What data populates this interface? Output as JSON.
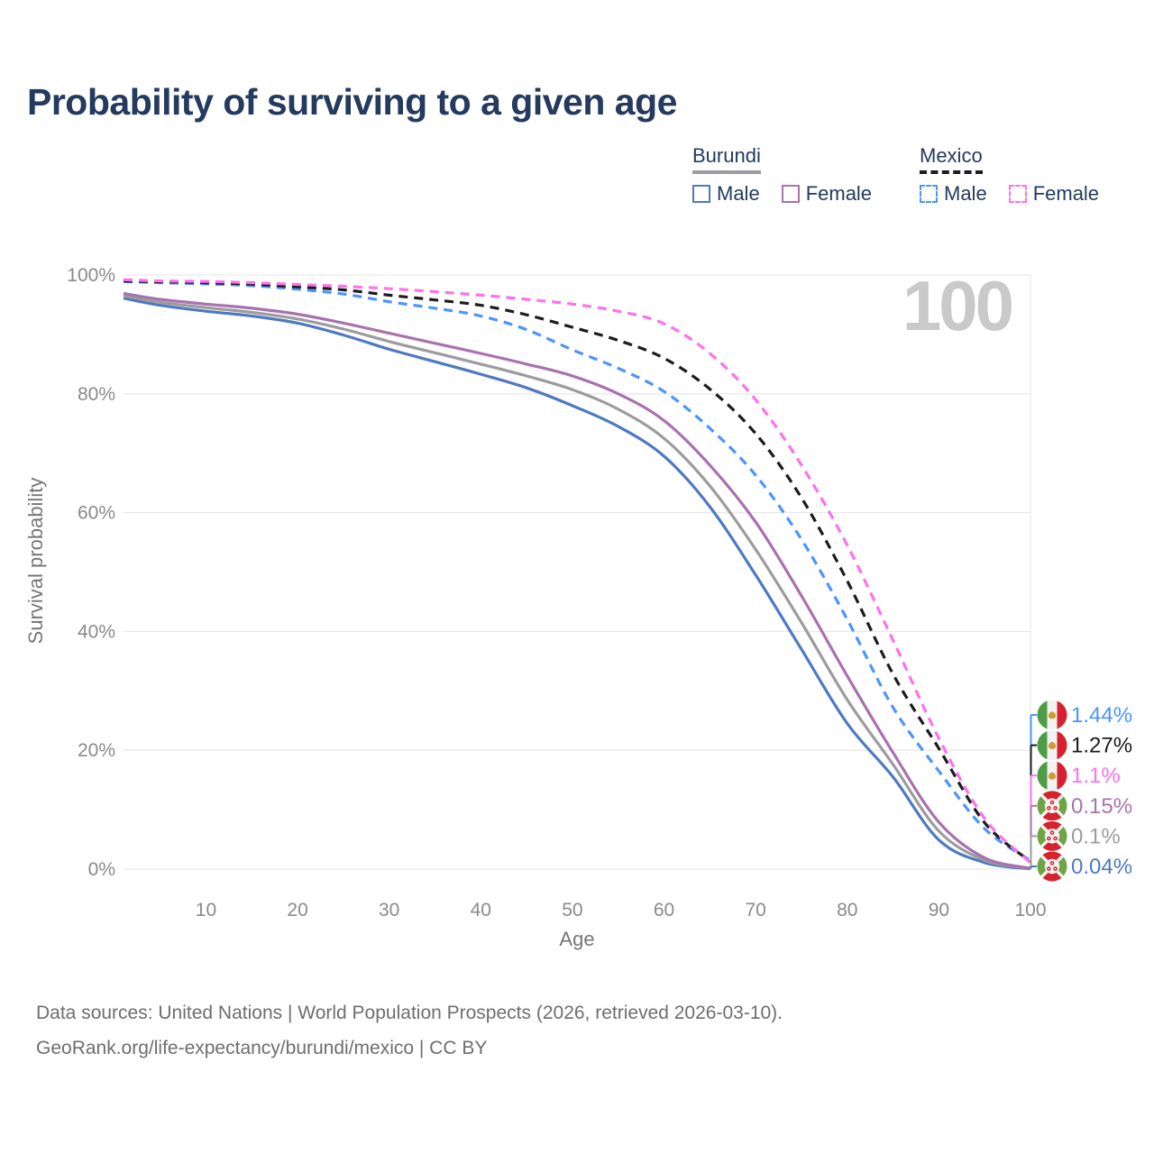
{
  "title": "Probability of surviving to a given age",
  "watermark": "100",
  "legend": {
    "groups": [
      {
        "country": "Burundi",
        "line_style": "solid",
        "underline_color": "#9c9c9c",
        "items": [
          {
            "label": "Male",
            "color": "#4e79c2",
            "dash": false
          },
          {
            "label": "Female",
            "color": "#a872ae",
            "dash": false
          }
        ]
      },
      {
        "country": "Mexico",
        "line_style": "dashed",
        "underline_color": "#1c1c1c",
        "items": [
          {
            "label": "Male",
            "color": "#4c94ff",
            "dash": true
          },
          {
            "label": "Female",
            "color": "#ff70ec",
            "dash": true
          }
        ]
      }
    ]
  },
  "axes": {
    "y": {
      "title": "Survival probability",
      "ticks": [
        "0%",
        "20%",
        "40%",
        "60%",
        "80%",
        "100%"
      ],
      "tick_values": [
        0,
        20,
        40,
        60,
        80,
        100
      ],
      "range": [
        0,
        100
      ]
    },
    "x": {
      "title": "Age",
      "ticks": [
        10,
        20,
        30,
        40,
        50,
        60,
        70,
        80,
        90,
        100
      ],
      "range": [
        1,
        100
      ]
    }
  },
  "chart_data": {
    "type": "line",
    "title": "Probability of surviving to a given age",
    "xlabel": "Age",
    "ylabel": "Survival probability",
    "x_range": [
      1,
      100
    ],
    "y_range_percent": [
      0,
      100
    ],
    "grid": "horizontal",
    "ages": [
      1,
      5,
      10,
      15,
      20,
      25,
      30,
      35,
      40,
      45,
      50,
      55,
      60,
      65,
      70,
      75,
      80,
      85,
      90,
      95,
      100
    ],
    "series": [
      {
        "name": "Mexico Male",
        "country": "Mexico",
        "sex": "male",
        "flag": "mexico",
        "color": "#4c94ff",
        "dash": true,
        "end_label": "1.44%",
        "end_value": 1.44,
        "values": [
          98.9,
          98.7,
          98.5,
          98.2,
          97.6,
          96.8,
          95.5,
          94.4,
          93.1,
          90.8,
          87.4,
          84.3,
          80.4,
          74.2,
          66.3,
          55.5,
          42.0,
          27.2,
          16.5,
          6.8,
          1.44
        ]
      },
      {
        "name": "Mexico (both sexes)",
        "country": "Mexico",
        "sex": "both",
        "flag": "mexico",
        "color": "#1c1c1c",
        "dash": true,
        "end_label": "1.27%",
        "end_value": 1.27,
        "values": [
          99.0,
          98.85,
          98.7,
          98.45,
          98.0,
          97.5,
          96.6,
          95.8,
          94.9,
          93.3,
          91.2,
          89.0,
          86.0,
          80.8,
          73.3,
          62.5,
          48.5,
          32.8,
          20.3,
          7.8,
          1.27
        ]
      },
      {
        "name": "Mexico Female",
        "country": "Mexico",
        "sex": "female",
        "flag": "mexico",
        "color": "#ff70ec",
        "dash": true,
        "end_label": "1.1%",
        "end_value": 1.1,
        "values": [
          99.2,
          99.0,
          98.9,
          98.7,
          98.4,
          98.1,
          97.7,
          97.2,
          96.6,
          95.9,
          95.1,
          93.9,
          91.8,
          86.8,
          79.0,
          68.0,
          54.5,
          38.5,
          22.0,
          8.5,
          1.1
        ]
      },
      {
        "name": "Burundi Female",
        "country": "Burundi",
        "sex": "female",
        "flag": "burundi",
        "color": "#a872ae",
        "dash": false,
        "end_label": "0.15%",
        "end_value": 0.15,
        "values": [
          96.9,
          95.9,
          95.1,
          94.4,
          93.4,
          91.9,
          90.2,
          88.5,
          86.8,
          85.0,
          83.0,
          80.0,
          75.5,
          68.0,
          58.4,
          46.0,
          32.5,
          19.6,
          7.9,
          1.9,
          0.15
        ]
      },
      {
        "name": "Burundi (both sexes)",
        "country": "Burundi",
        "sex": "both",
        "flag": "burundi",
        "color": "#9c9c9c",
        "dash": false,
        "end_label": "0.1%",
        "end_value": 0.1,
        "values": [
          96.5,
          95.4,
          94.5,
          93.7,
          92.6,
          90.9,
          88.8,
          86.9,
          85.0,
          83.0,
          80.7,
          77.4,
          72.5,
          64.5,
          53.8,
          41.5,
          28.5,
          17.6,
          6.4,
          1.5,
          0.1
        ]
      },
      {
        "name": "Burundi Male",
        "country": "Burundi",
        "sex": "male",
        "flag": "burundi",
        "color": "#4e79c2",
        "dash": false,
        "end_label": "0.04%",
        "end_value": 0.04,
        "values": [
          96.1,
          94.9,
          93.9,
          93.1,
          91.9,
          89.9,
          87.5,
          85.4,
          83.3,
          81.0,
          78.0,
          74.5,
          69.5,
          61.0,
          49.5,
          37.0,
          24.5,
          15.5,
          4.9,
          1.1,
          0.04
        ]
      }
    ],
    "legend_position": "top-right",
    "annotation_big_number": "100"
  },
  "flag_colors": {
    "mexico": {
      "green": "#4e9c45",
      "white": "#f2f2f2",
      "red": "#d5222d",
      "emblem": "#d09a34"
    },
    "burundi": {
      "red": "#d5222d",
      "green": "#6da544",
      "white": "#f2f2f2"
    }
  },
  "footer": {
    "line1": "Data sources: United Nations | World Population Prospects (2026, retrieved 2026-03-10).",
    "line2": "GeoRank.org/life-expectancy/burundi/mexico | CC BY"
  }
}
